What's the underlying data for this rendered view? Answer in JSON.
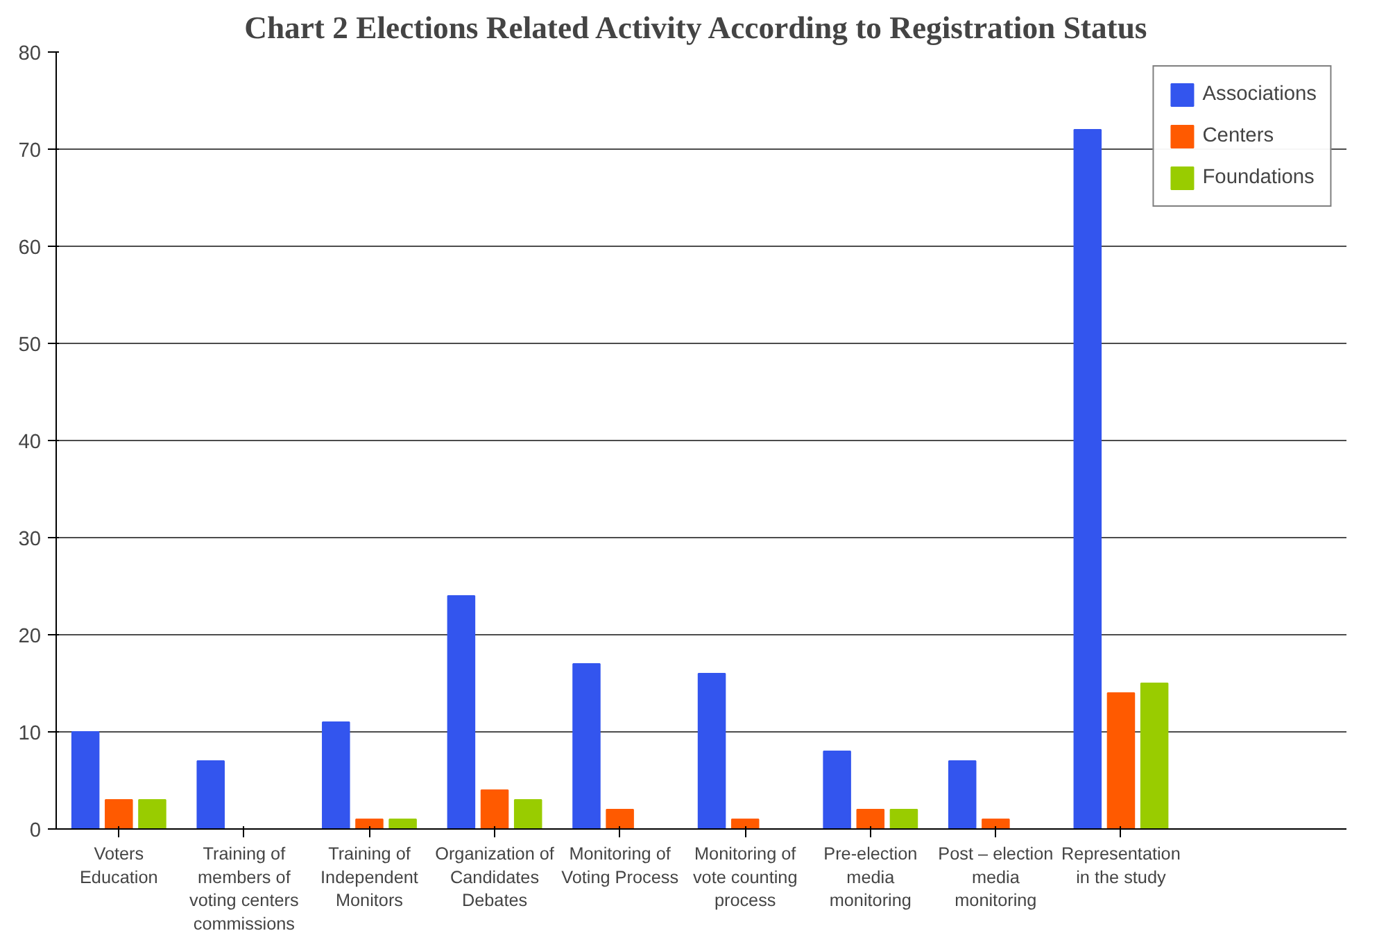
{
  "chart_data": {
    "type": "bar",
    "title": "Chart 2  Elections Related Activity According to Registration Status",
    "categories": [
      "Voters Education",
      "Training of members of voting centers commissions",
      "Training of Independent Monitors",
      "Organization of Candidates Debates",
      "Monitoring of Voting Process",
      "Monitoring of vote counting process",
      "Pre-election media monitoring",
      "Post – election media monitoring",
      "Representation in the study"
    ],
    "series": [
      {
        "name": "Associations",
        "color": "#3355ee",
        "values": [
          10,
          7,
          11,
          24,
          17,
          16,
          8,
          7,
          72
        ]
      },
      {
        "name": "Centers",
        "color": "#ff5a00",
        "values": [
          3,
          0,
          1,
          4,
          2,
          1,
          2,
          1,
          14
        ]
      },
      {
        "name": "Foundations",
        "color": "#99cc00",
        "values": [
          3,
          0,
          1,
          3,
          0,
          0,
          2,
          0,
          15
        ]
      }
    ],
    "ylim": [
      0,
      80
    ],
    "yticks": [
      0,
      10,
      20,
      30,
      40,
      50,
      60,
      70,
      80
    ],
    "grid": "y",
    "legend": "right"
  }
}
